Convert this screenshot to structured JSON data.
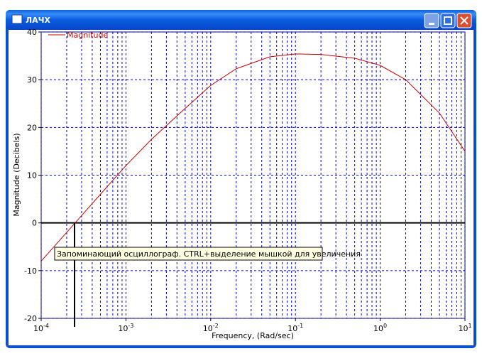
{
  "window": {
    "title": "ЛАЧХ"
  },
  "tooltip": "Запоминающий осциллограф. CTRL+выделение мышкой для увеличения",
  "chart_data": {
    "type": "line",
    "x_scale": "log",
    "grid": true,
    "xlabel": "Frequency, (Rad/sec)",
    "ylabel": "Magnitude (Decibels)",
    "xlim": [
      0.0001,
      10
    ],
    "ylim": [
      -20,
      40
    ],
    "xticks": [
      {
        "value": 0.0001,
        "label": "10",
        "exponent": "-4"
      },
      {
        "value": 0.001,
        "label": "10",
        "exponent": "-3"
      },
      {
        "value": 0.01,
        "label": "10",
        "exponent": "-2"
      },
      {
        "value": 0.1,
        "label": "10",
        "exponent": "-1"
      },
      {
        "value": 1,
        "label": "10",
        "exponent": "0"
      },
      {
        "value": 10,
        "label": "10",
        "exponent": "1"
      }
    ],
    "xminorticks": [
      0.0002,
      0.0003,
      0.0004,
      0.0005,
      0.0006,
      0.0007,
      0.0008,
      0.0009,
      0.002,
      0.003,
      0.004,
      0.005,
      0.006,
      0.007,
      0.008,
      0.009,
      0.02,
      0.03,
      0.04,
      0.05,
      0.06,
      0.07,
      0.08,
      0.09,
      0.2,
      0.3,
      0.4,
      0.5,
      0.6,
      0.7,
      0.8,
      0.9,
      2,
      3,
      4,
      5,
      6,
      7,
      8,
      9
    ],
    "yticks": [
      -20,
      -10,
      0,
      10,
      20,
      30,
      40
    ],
    "x": [
      0.0001,
      0.0002,
      0.0005,
      0.001,
      0.002,
      0.005,
      0.01,
      0.02,
      0.05,
      0.1,
      0.2,
      0.5,
      1,
      2,
      5,
      10
    ],
    "series": [
      {
        "name": "Magnitude",
        "color": "#cc0000",
        "values": [
          -8,
          -2,
          6,
          12,
          17.5,
          24,
          28.8,
          32.3,
          34.8,
          35.4,
          35.3,
          34.5,
          33,
          30,
          23,
          15
        ]
      }
    ]
  }
}
